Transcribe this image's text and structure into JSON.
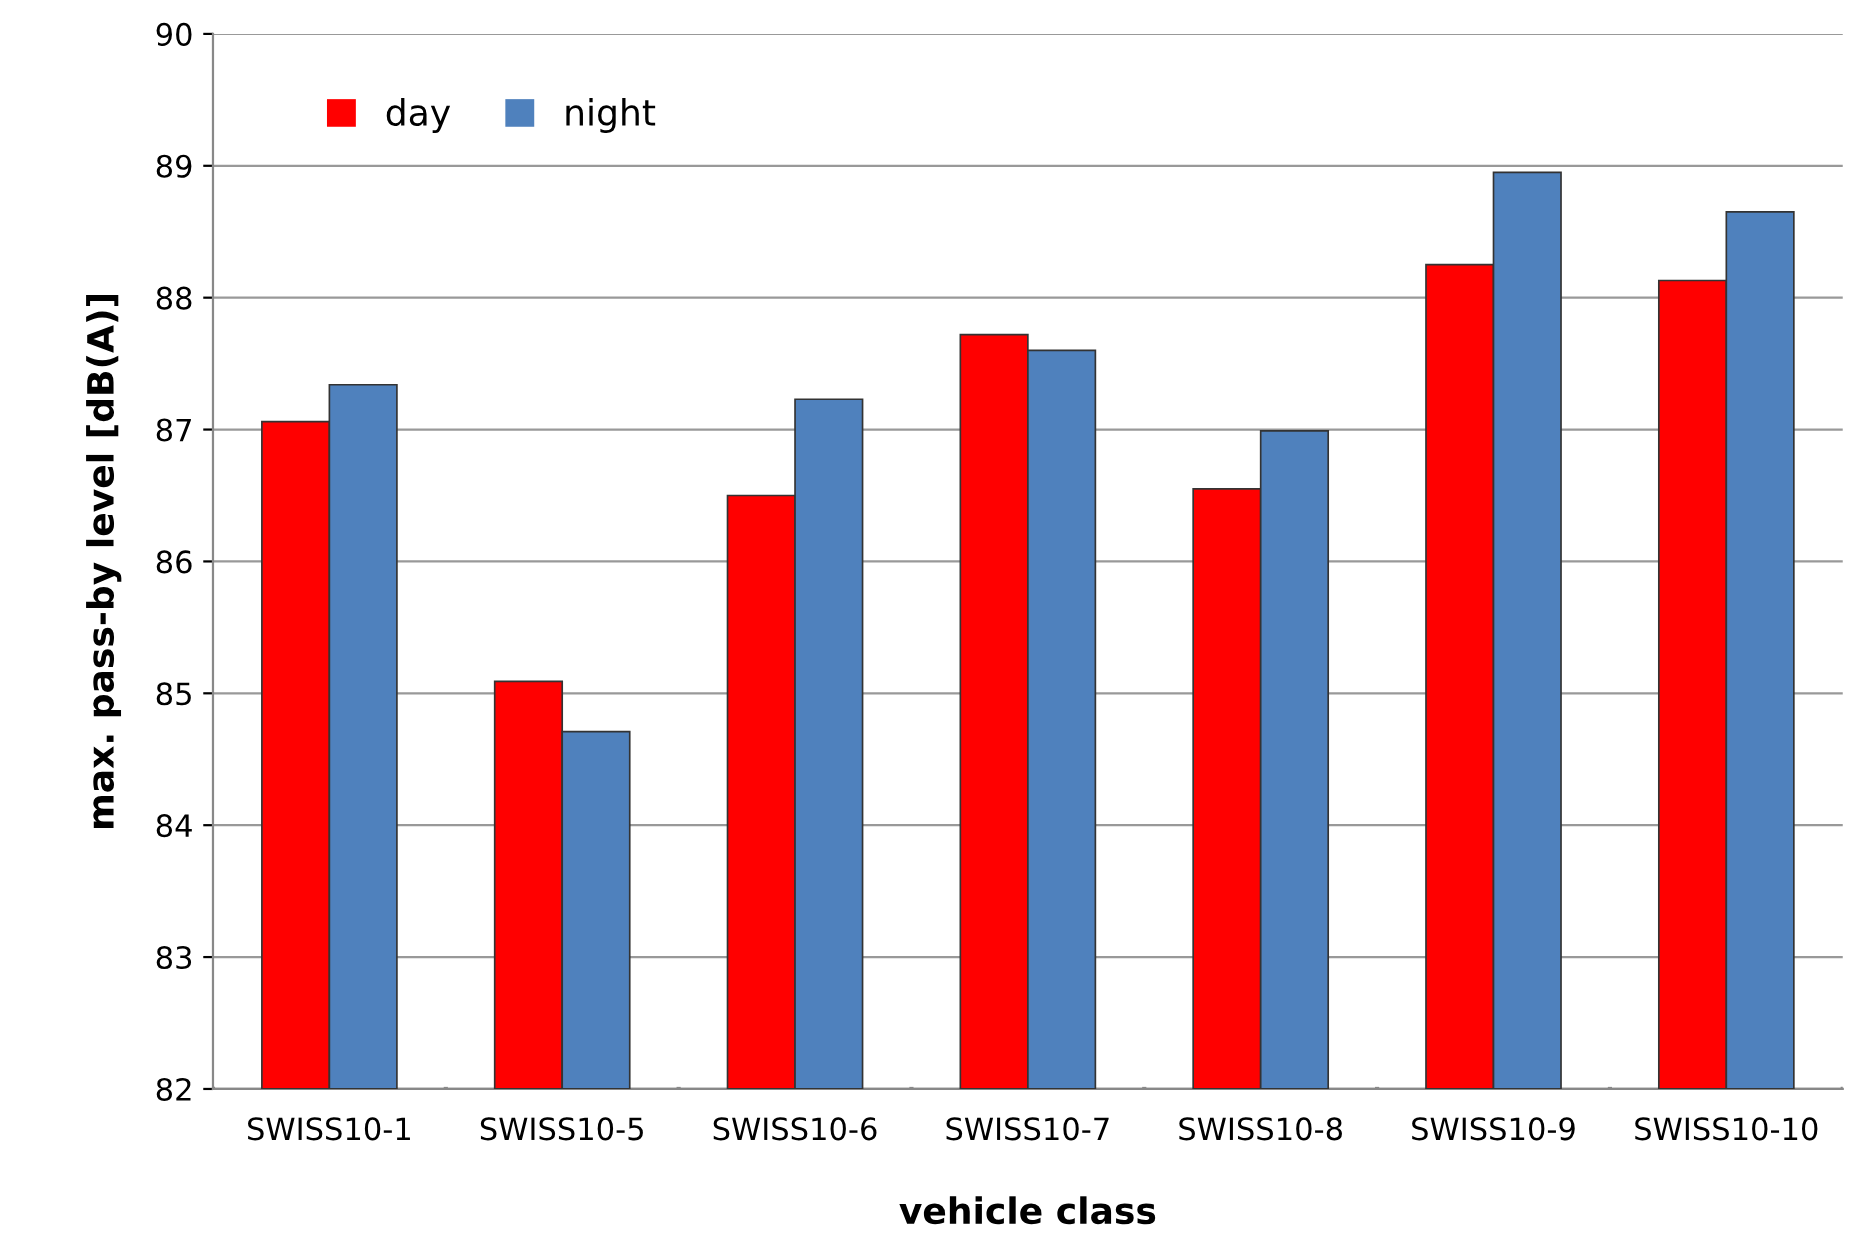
{
  "chart_data": {
    "type": "bar",
    "xlabel": "vehicle class",
    "ylabel": "max. pass-by level [dB(A)]",
    "categories": [
      "SWISS10-1",
      "SWISS10-5",
      "SWISS10-6",
      "SWISS10-7",
      "SWISS10-8",
      "SWISS10-9",
      "SWISS10-10"
    ],
    "series": [
      {
        "name": "day",
        "color": "#ff0000",
        "values": [
          87.06,
          85.09,
          86.5,
          87.72,
          86.55,
          88.25,
          88.13
        ]
      },
      {
        "name": "night",
        "color": "#4f81bd",
        "values": [
          87.34,
          84.71,
          87.23,
          87.6,
          86.99,
          88.95,
          88.65
        ]
      }
    ],
    "ylim": [
      82,
      90
    ],
    "yticks": [
      82,
      83,
      84,
      85,
      86,
      87,
      88,
      89,
      90
    ],
    "grid": "y",
    "legend": "top left"
  }
}
